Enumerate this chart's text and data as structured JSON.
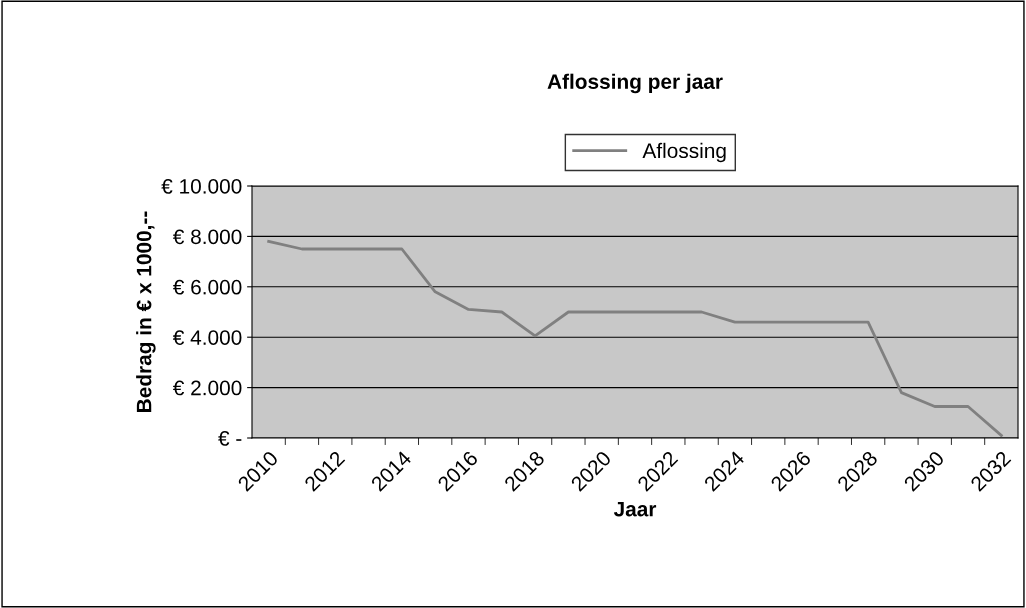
{
  "chart_data": {
    "type": "line",
    "title": "Aflossing per jaar",
    "xlabel": "Jaar",
    "ylabel": "Bedrag in € x 1000,--",
    "categories": [
      "2010",
      null,
      "2012",
      null,
      "2014",
      null,
      "2016",
      null,
      "2018",
      null,
      "2020",
      null,
      "2022",
      null,
      "2024",
      null,
      "2026",
      null,
      "2028",
      null,
      "2030",
      null,
      "2032"
    ],
    "series": [
      {
        "name": "Aflossing",
        "color": "#808080",
        "values": [
          7800,
          7500,
          7500,
          7500,
          7500,
          5800,
          5100,
          5000,
          4050,
          5000,
          5000,
          5000,
          5000,
          5000,
          4600,
          4600,
          4600,
          4600,
          4600,
          1800,
          1250,
          1250,
          100
        ]
      }
    ],
    "ylim": [
      0,
      10000
    ],
    "yticks": [
      {
        "value": 0,
        "label": "€ -"
      },
      {
        "value": 2000,
        "label": "€ 2.000"
      },
      {
        "value": 4000,
        "label": "€ 4.000"
      },
      {
        "value": 6000,
        "label": "€ 6.000"
      },
      {
        "value": 8000,
        "label": "€ 8.000"
      },
      {
        "value": 10000,
        "label": "€ 10.000"
      }
    ],
    "grid": "y",
    "legend": "top",
    "line_style": "solid",
    "marker": "none"
  }
}
